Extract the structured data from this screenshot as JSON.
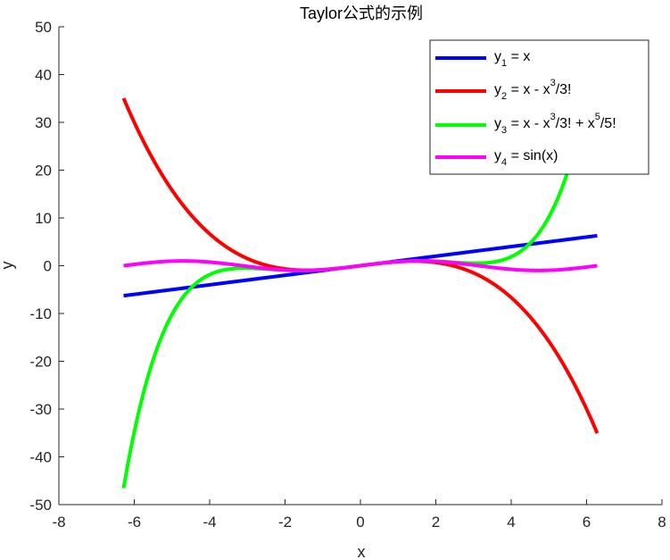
{
  "chart_data": {
    "type": "line",
    "title": "Taylor公式的示例",
    "xlabel": "x",
    "ylabel": "y",
    "xlim": [
      -8,
      8
    ],
    "ylim": [
      -50,
      50
    ],
    "x_ticks": [
      "-8",
      "-6",
      "-4",
      "-2",
      "0",
      "2",
      "4",
      "6",
      "8"
    ],
    "y_ticks": [
      "-50",
      "-40",
      "-30",
      "-20",
      "-10",
      "0",
      "10",
      "20",
      "30",
      "40",
      "50"
    ],
    "x_range": [
      -6.2832,
      6.2832
    ],
    "grid": false,
    "legend_position": "top-right",
    "series": [
      {
        "name": "y1 = x",
        "legend": {
          "base": "y",
          "sub": "1",
          "rest": [
            {
              "t": " = x"
            }
          ]
        },
        "formula": "x",
        "color": "#0000ff"
      },
      {
        "name": "y2 = x - x^3/3!",
        "legend": {
          "base": "y",
          "sub": "2",
          "rest": [
            {
              "t": " = x - x"
            },
            {
              "sup": "3"
            },
            {
              "t": "/3!"
            }
          ]
        },
        "formula": "x - x^3/6",
        "color": "#ff0000"
      },
      {
        "name": "y3 = x - x^3/3! + x^5/5!",
        "legend": {
          "base": "y",
          "sub": "3",
          "rest": [
            {
              "t": " = x - x"
            },
            {
              "sup": "3"
            },
            {
              "t": "/3! + x"
            },
            {
              "sup": "5"
            },
            {
              "t": "/5!"
            }
          ]
        },
        "formula": "x - x^3/6 + x^5/120",
        "color": "#00ff00"
      },
      {
        "name": "y4 = sin(x)",
        "legend": {
          "base": "y",
          "sub": "4",
          "rest": [
            {
              "t": " = sin(x)"
            }
          ]
        },
        "formula": "sin(x)",
        "color": "#ff00ff"
      }
    ]
  }
}
